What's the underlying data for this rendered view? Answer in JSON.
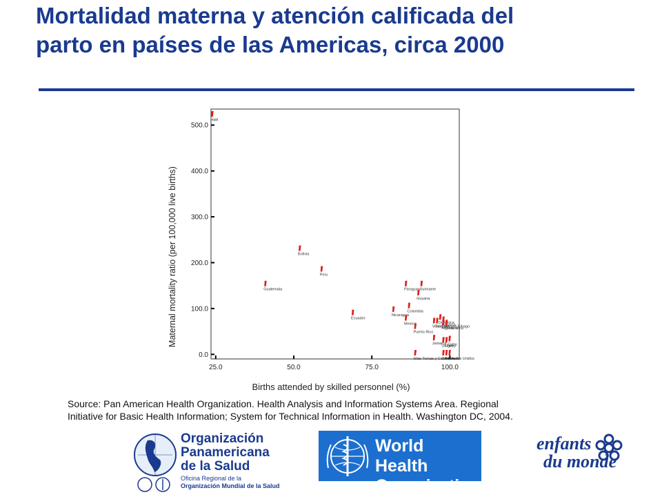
{
  "slide": {
    "title_line1": "Mortalidad materna y atención calificada del",
    "title_line2": "parto en países de las Americas, circa 2000",
    "source_line1": "Source: Pan American Health Organization. Health Analysis and Information Systems Area. Regional",
    "source_line2": "Initiative for Basic Health Information; System for Technical Information in Health. Washington DC, 2004."
  },
  "colors": {
    "title": "#1a3a8f",
    "marker": "#d9221c",
    "who_blue": "#1c6fcf"
  },
  "logos": {
    "ops": {
      "line1": "Organización",
      "line2": "Panamericana",
      "line3": "de la Salud",
      "sub1": "Oficina Regional de la",
      "sub2": "Organización Mundial de la Salud"
    },
    "who": {
      "line1": "World Health",
      "line2": "Organization"
    },
    "edm": {
      "line1": "enfants",
      "line2": "du monde"
    }
  },
  "chart_data": {
    "type": "scatter",
    "xlabel": "Births attended by skilled personnel (%)",
    "ylabel": "Maternal mortality ratio (per 100,000 live births)",
    "xlim": [
      23.5,
      103
    ],
    "ylim": [
      -10,
      535
    ],
    "xticks": [
      "25.0",
      "50.0",
      "75.0",
      "100.0"
    ],
    "yticks": [
      "0.0",
      "100.0",
      "200.0",
      "300.0",
      "400.0",
      "500.0"
    ],
    "grid": false,
    "points": [
      {
        "label": "Haiti",
        "x": 24,
        "y": 523
      },
      {
        "label": "Bolivia",
        "x": 52,
        "y": 230
      },
      {
        "label": "Peru",
        "x": 59,
        "y": 185
      },
      {
        "label": "Guatemala",
        "x": 41,
        "y": 153
      },
      {
        "label": "Paraguay",
        "x": 86,
        "y": 153
      },
      {
        "label": "Suriname",
        "x": 91,
        "y": 153
      },
      {
        "label": "Guyana",
        "x": 90,
        "y": 133
      },
      {
        "label": "Colombia",
        "x": 87,
        "y": 105
      },
      {
        "label": "Nicaragua",
        "x": 82,
        "y": 97
      },
      {
        "label": "Ecuador",
        "x": 69,
        "y": 90
      },
      {
        "label": "Mexico",
        "x": 86,
        "y": 78
      },
      {
        "label": "Dominica",
        "x": 97,
        "y": 80
      },
      {
        "label": "Panama",
        "x": 98,
        "y": 75
      },
      {
        "label": "Trinidad and Tobago",
        "x": 96,
        "y": 72
      },
      {
        "label": "Venezuela",
        "x": 95,
        "y": 72
      },
      {
        "label": "Argentina",
        "x": 98,
        "y": 68
      },
      {
        "label": "Costa Rica",
        "x": 99,
        "y": 68
      },
      {
        "label": "Puerto Rico",
        "x": 89,
        "y": 60
      },
      {
        "label": "Cuba",
        "x": 100,
        "y": 33
      },
      {
        "label": "Chile",
        "x": 99,
        "y": 30
      },
      {
        "label": "Uruguay",
        "x": 98,
        "y": 30
      },
      {
        "label": "Jamaica",
        "x": 95,
        "y": 35
      },
      {
        "label": "Islas Turcas y Caicos",
        "x": 89,
        "y": 2
      },
      {
        "label": "Canada",
        "x": 98,
        "y": 2
      },
      {
        "label": "Bermuda",
        "x": 99,
        "y": 2
      },
      {
        "label": "Estados Unidos",
        "x": 100,
        "y": 2
      }
    ]
  }
}
